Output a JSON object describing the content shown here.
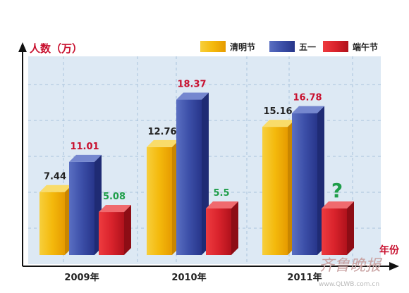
{
  "chart_data": {
    "type": "bar",
    "ylabel": "人数（万）",
    "xlabel": "年份",
    "categories": [
      "2009年",
      "2010年",
      "2011年"
    ],
    "series": [
      {
        "name": "清明节",
        "values": [
          7.44,
          12.76,
          15.16
        ],
        "labels": [
          "7.44",
          "12.76",
          "15.16"
        ]
      },
      {
        "name": "五一",
        "values": [
          11.01,
          18.37,
          16.78
        ],
        "labels": [
          "11.01",
          "18.37",
          "16.78"
        ]
      },
      {
        "name": "端午节",
        "values": [
          5.08,
          5.5,
          null
        ],
        "labels": [
          "5.08",
          "5.5",
          "?"
        ]
      }
    ],
    "ylim": [
      0,
      20
    ],
    "grid": true,
    "legend_position": "top-right"
  },
  "colors": {
    "qingming": "#f2b705",
    "wuyi": "#3a4fa3",
    "duanwu": "#d7232f",
    "label_red": "#c8102e",
    "label_green": "#1f9e4a",
    "label_dark": "#222222",
    "plot_bg": "#dde9f4",
    "grid": "#a9c3dc"
  },
  "watermark": {
    "logo": "齐鲁晚报",
    "url": "www.QLWB.com.cn"
  }
}
